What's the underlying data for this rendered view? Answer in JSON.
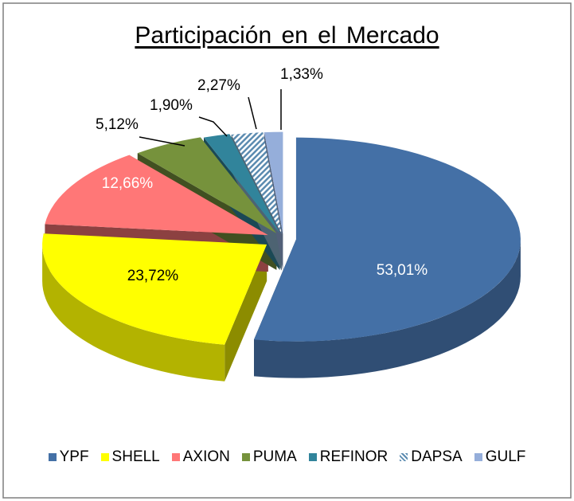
{
  "chart_data": {
    "type": "pie",
    "title": "Participación  en el Mercado",
    "categories": [
      "YPF",
      "SHELL",
      "AXION",
      "PUMA",
      "REFINOR",
      "DAPSA",
      "GULF"
    ],
    "values": [
      53.01,
      23.72,
      12.66,
      5.12,
      1.9,
      2.27,
      1.33
    ],
    "labels": [
      "53,01%",
      "23,72%",
      "12,66%",
      "5,12%",
      "1,90%",
      "2,27%",
      "1,33%"
    ],
    "colors": [
      "#4470A6",
      "#FFFF00",
      "#FF7777",
      "#76923C",
      "#31849B",
      "#8CB4D0",
      "#95AEDA"
    ],
    "legend_position": "bottom",
    "three_d": true,
    "exploded": true
  }
}
